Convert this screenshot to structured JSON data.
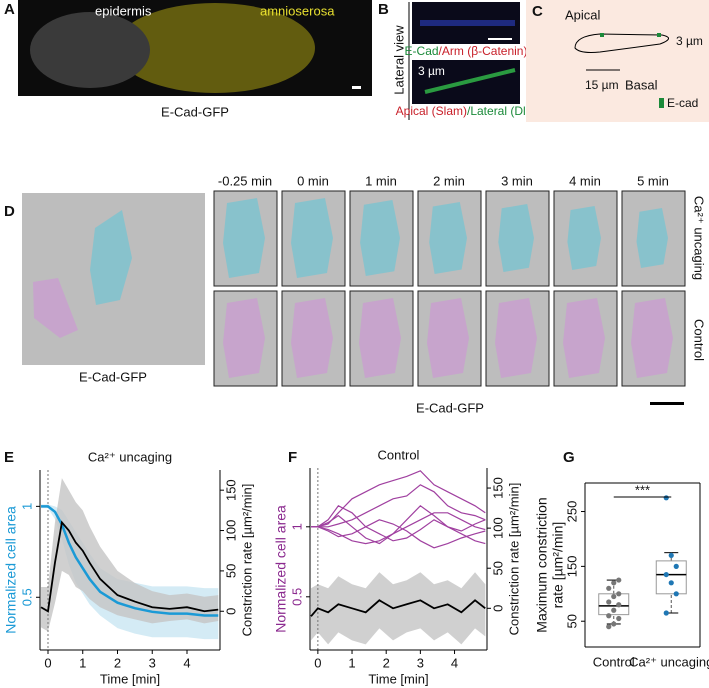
{
  "panels": {
    "A": {
      "letter": "A",
      "labels": [
        "epidermis",
        "amnioserosa"
      ],
      "caption": "E-Cad-GFP"
    },
    "B": {
      "letter": "B",
      "side": "Lateral view",
      "caption1": [
        "E-Cad",
        "/Arm (β-Catenin)"
      ],
      "scale": "3 µm",
      "caption2": [
        "Apical (Slam)",
        "/Lateral (Dlg)"
      ]
    },
    "C": {
      "letter": "C",
      "top": "Apical",
      "bottom": "Basal",
      "height": "3 µm",
      "width": "15 µm",
      "legend": "E-cad"
    },
    "D": {
      "letter": "D",
      "caption": "E-Cad-GFP",
      "times": [
        "-0.25 min",
        "0 min",
        "1 min",
        "2 min",
        "3 min",
        "4 min",
        "5 min"
      ],
      "rows": [
        "Ca²⁺ uncaging",
        "Control"
      ],
      "bottom": "E-Cad-GFP"
    }
  },
  "chart_data": [
    {
      "panel": "E",
      "type": "line",
      "title": "Ca²⁺ uncaging",
      "xlabel": "Time [min]",
      "ylabel": "Normalized cell area",
      "ylabel_color": "#1b9ad6",
      "y2label": "Constriction rate [µm²/min]",
      "x": [
        -0.2,
        0,
        0.2,
        0.4,
        0.6,
        0.8,
        1,
        1.2,
        1.5,
        2,
        2.5,
        3,
        3.5,
        4,
        4.5,
        4.9
      ],
      "bands": [
        {
          "color": "#c9e6f3",
          "lower": [
            0.99,
            0.99,
            0.93,
            0.82,
            0.68,
            0.58,
            0.52,
            0.46,
            0.4,
            0.33,
            0.3,
            0.28,
            0.28,
            0.28,
            0.27,
            0.27
          ],
          "upper": [
            1.01,
            1.01,
            1.0,
            0.98,
            0.92,
            0.86,
            0.8,
            0.74,
            0.66,
            0.6,
            0.58,
            0.56,
            0.56,
            0.56,
            0.55,
            0.55
          ]
        },
        {
          "color": "#c4c4c4",
          "axis": "y2",
          "lower": [
            -20,
            -25,
            10,
            50,
            45,
            30,
            25,
            15,
            5,
            -5,
            -10,
            -15,
            -12,
            -10,
            -15,
            -12
          ],
          "upper": [
            30,
            30,
            110,
            165,
            150,
            135,
            125,
            105,
            80,
            50,
            35,
            25,
            20,
            22,
            18,
            20
          ]
        }
      ],
      "series": [
        {
          "color": "#1b9ad6",
          "values": [
            1,
            1,
            0.97,
            0.9,
            0.8,
            0.72,
            0.66,
            0.6,
            0.53,
            0.47,
            0.44,
            0.42,
            0.41,
            0.41,
            0.4,
            0.4
          ]
        },
        {
          "color": "#000000",
          "axis": "y2",
          "values": [
            5,
            0,
            60,
            110,
            100,
            85,
            75,
            60,
            40,
            20,
            12,
            5,
            3,
            5,
            0,
            2
          ]
        }
      ],
      "xlim": [
        -0.23,
        4.95
      ],
      "xticks": [
        0,
        1,
        2,
        3,
        4
      ],
      "ylim": [
        0.21,
        1.2
      ],
      "yticks": [
        0.5,
        1
      ],
      "y2lim": [
        -48,
        175
      ],
      "y2ticks": [
        0,
        50,
        100,
        150
      ],
      "vline": 0
    },
    {
      "panel": "F",
      "type": "line",
      "title": "Control",
      "xlabel": "Time [min]",
      "ylabel": "Normalized cell area",
      "ylabel_color": "#8b2a8f",
      "y2label": "Constriction rate [µm²/min]",
      "x": [
        -0.2,
        0,
        0.3,
        0.6,
        1,
        1.4,
        1.8,
        2.2,
        2.6,
        3,
        3.4,
        3.8,
        4.2,
        4.6,
        4.9
      ],
      "bands": [
        {
          "color": "#c4c4c4",
          "axis": "y2",
          "lower": [
            -40,
            -30,
            -45,
            -30,
            -40,
            -45,
            -25,
            -40,
            -30,
            -25,
            -40,
            -30,
            -45,
            -25,
            -35
          ],
          "upper": [
            25,
            30,
            25,
            40,
            30,
            25,
            45,
            30,
            35,
            45,
            30,
            35,
            25,
            45,
            30
          ]
        }
      ],
      "series": [
        {
          "color": "#a040a0",
          "values": [
            1,
            1,
            1.02,
            1.1,
            1.2,
            1.25,
            1.3,
            1.33,
            1.36,
            1.4,
            1.3,
            1.25,
            1.2,
            1.15,
            1.1
          ]
        },
        {
          "color": "#a040a0",
          "values": [
            1,
            1,
            0.98,
            0.95,
            0.9,
            0.88,
            0.9,
            0.95,
            1.0,
            1.05,
            1.1,
            1.1,
            1.05,
            1.0,
            0.98
          ]
        },
        {
          "color": "#a040a0",
          "values": [
            1,
            1,
            1.05,
            1.15,
            1.1,
            1.0,
            0.95,
            0.9,
            0.92,
            0.98,
            1.05,
            1.0,
            0.95,
            0.9,
            0.88
          ]
        },
        {
          "color": "#a040a0",
          "values": [
            1,
            1,
            1.0,
            1.02,
            1.05,
            1.1,
            1.15,
            1.2,
            1.22,
            1.3,
            1.25,
            1.15,
            1.1,
            1.08,
            1.05
          ]
        },
        {
          "color": "#a040a0",
          "values": [
            1,
            1,
            0.97,
            0.93,
            0.95,
            1.0,
            1.05,
            1.02,
            0.97,
            0.9,
            0.85,
            0.88,
            0.92,
            0.95,
            0.97
          ]
        },
        {
          "color": "#a040a0",
          "values": [
            1,
            1,
            1.03,
            1.08,
            1.0,
            0.92,
            0.88,
            0.95,
            1.05,
            1.15,
            1.08,
            1.0,
            0.97,
            1.02,
            1.05
          ]
        },
        {
          "color": "#000000",
          "axis": "y2",
          "values": [
            -10,
            0,
            -5,
            5,
            0,
            -5,
            10,
            0,
            5,
            10,
            0,
            5,
            -5,
            10,
            0
          ]
        }
      ],
      "xlim": [
        -0.23,
        4.95
      ],
      "xticks": [
        0,
        1,
        2,
        3,
        4
      ],
      "ylim": [
        0.12,
        1.42
      ],
      "yticks": [
        0.5,
        1
      ],
      "y2lim": [
        -52,
        175
      ],
      "y2ticks": [
        0,
        50,
        100,
        150
      ],
      "vline": 0
    },
    {
      "panel": "G",
      "type": "box",
      "ylabel": [
        "Maximum constriction",
        "rate [µm²/min]"
      ],
      "annotation": "***",
      "categories": [
        "Control",
        "Ca²⁺ uncaging"
      ],
      "boxes": [
        {
          "min": 45,
          "q1": 62,
          "median": 78,
          "q3": 100,
          "max": 125,
          "color": "#777777",
          "points": [
            40,
            45,
            55,
            60,
            70,
            80,
            85,
            95,
            100,
            110,
            120,
            125
          ]
        },
        {
          "min": 65,
          "q1": 100,
          "median": 135,
          "q3": 160,
          "max": 175,
          "color": "#1f77b4",
          "points": [
            275,
            170,
            150,
            135,
            120,
            100,
            65
          ]
        }
      ],
      "ylim": [
        3,
        302
      ],
      "yticks": [
        50,
        150,
        250
      ]
    }
  ]
}
